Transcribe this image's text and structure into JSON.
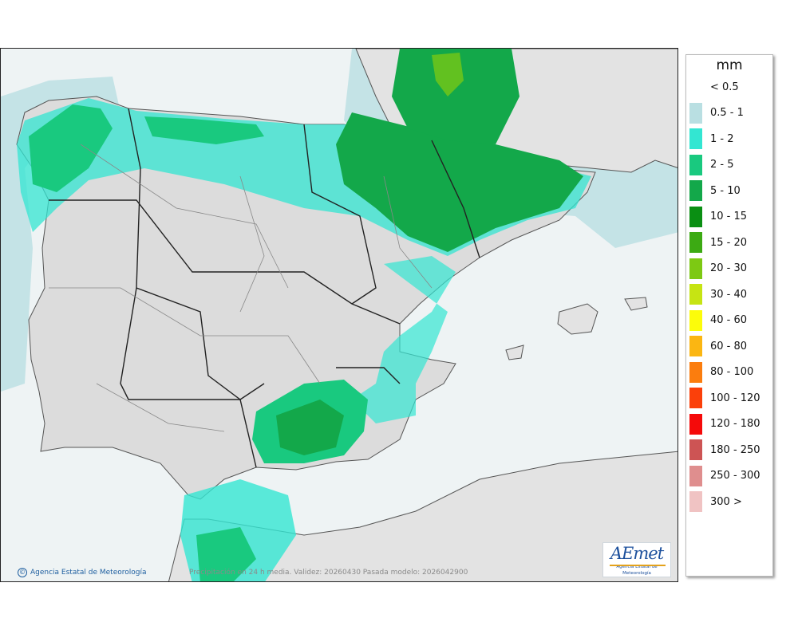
{
  "map": {
    "credit": "Agencia Estatal de Meteorología",
    "caption": "Precipitación en 24 h media. Validez: 20260430 Pasada modelo: 2026042900",
    "logo": {
      "word": "AEmet",
      "subtitle": "Agencia Estatal de Meteorología"
    }
  },
  "legend": {
    "unit": "mm",
    "items": [
      {
        "label": "< 0.5",
        "color": ""
      },
      {
        "label": "0.5 - 1",
        "color": "#b9dfe2"
      },
      {
        "label": "1 - 2",
        "color": "#33e6d2"
      },
      {
        "label": "2 - 5",
        "color": "#19c97f"
      },
      {
        "label": "5 - 10",
        "color": "#13a84a"
      },
      {
        "label": "10 - 15",
        "color": "#0a8f13"
      },
      {
        "label": "15 - 20",
        "color": "#3caa13"
      },
      {
        "label": "20 - 30",
        "color": "#7dc913"
      },
      {
        "label": "30 - 40",
        "color": "#c6e413"
      },
      {
        "label": "40 - 60",
        "color": "#fcfc0a"
      },
      {
        "label": "60 - 80",
        "color": "#fbb612"
      },
      {
        "label": "80 - 100",
        "color": "#fb7d0e"
      },
      {
        "label": "100 - 120",
        "color": "#fb400a"
      },
      {
        "label": "120 - 180",
        "color": "#f50a0a"
      },
      {
        "label": "180 - 250",
        "color": "#cd5454"
      },
      {
        "label": "250 - 300",
        "color": "#df8e8e"
      },
      {
        "label": "300 >",
        "color": "#f0c3c3"
      }
    ]
  }
}
